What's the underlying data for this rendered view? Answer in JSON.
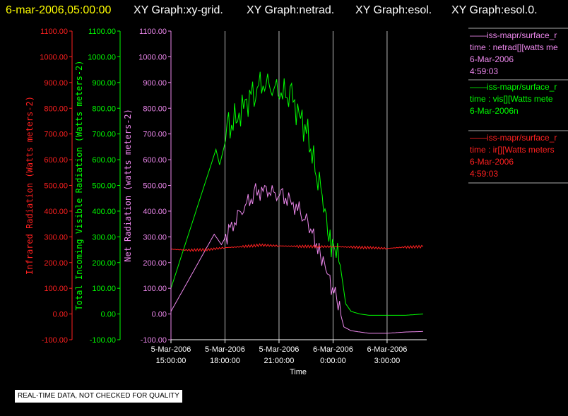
{
  "header": {
    "datetime": "6-mar-2006,05:00:00",
    "graph_titles": [
      "XY Graph:xy-grid.",
      "XY Graph:netrad.",
      "XY Graph:esol.",
      "XY Graph:esol.0."
    ]
  },
  "colors": {
    "red": "#ff2020",
    "green": "#00ff00",
    "violet": "#ee88ee",
    "white": "#ffffff",
    "background": "#000000"
  },
  "chart_data": {
    "type": "line",
    "xlabel": "Time",
    "x_ticks": [
      {
        "value": 15,
        "line1": "5-Mar-2006",
        "line2": "15:00:00"
      },
      {
        "value": 18,
        "line1": "5-Mar-2006",
        "line2": "18:00:00"
      },
      {
        "value": 21,
        "line1": "5-Mar-2006",
        "line2": "21:00:00"
      },
      {
        "value": 24,
        "line1": "6-Mar-2006",
        "line2": "0:00:00"
      },
      {
        "value": 27,
        "line1": "6-Mar-2006",
        "line2": "3:00:00"
      }
    ],
    "xlim": [
      15,
      29.2
    ],
    "ylim": [
      -100,
      1100
    ],
    "y_axes": [
      {
        "label": "Infrared Radiation (Watts meters-2)",
        "color": "red",
        "ticks": [
          "1100.00",
          "1000.00",
          "900.00",
          "800.00",
          "700.00",
          "600.00",
          "500.00",
          "400.00",
          "300.00",
          "200.00",
          "100.00",
          "0.00",
          "-100.00"
        ]
      },
      {
        "label": "Total Incoming Visible Radiation (Watts meters-2)",
        "color": "green",
        "ticks": [
          "1100.00",
          "1000.00",
          "900.00",
          "800.00",
          "700.00",
          "600.00",
          "500.00",
          "400.00",
          "300.00",
          "200.00",
          "100.00",
          "0.00",
          "-100.00"
        ]
      },
      {
        "label": "Net Radiation (watts meters-2)",
        "color": "violet",
        "ticks": [
          "1100.00",
          "1000.00",
          "900.00",
          "800.00",
          "700.00",
          "600.00",
          "500.00",
          "400.00",
          "300.00",
          "200.00",
          "100.00",
          "0.00",
          "-100.00"
        ]
      }
    ],
    "series": [
      {
        "color": "green",
        "points": [
          [
            15,
            100
          ],
          [
            17.5,
            640
          ],
          [
            17.7,
            580
          ],
          [
            18.2,
            720
          ],
          [
            18.7,
            770
          ],
          [
            19.2,
            820
          ],
          [
            19.7,
            880
          ],
          [
            20.2,
            900
          ],
          [
            20.7,
            880
          ],
          [
            21.2,
            860
          ],
          [
            21.7,
            840
          ],
          [
            22.2,
            760
          ],
          [
            22.6,
            700
          ],
          [
            23.0,
            560
          ],
          [
            23.4,
            470
          ],
          [
            23.7,
            330
          ],
          [
            23.9,
            280
          ],
          [
            24.1,
            240
          ],
          [
            24.4,
            190
          ],
          [
            24.7,
            40
          ],
          [
            25.0,
            10
          ],
          [
            25.5,
            0
          ],
          [
            26.0,
            -5
          ],
          [
            27.0,
            -5
          ],
          [
            28.0,
            -5
          ],
          [
            29.0,
            0
          ]
        ]
      },
      {
        "color": "violet",
        "points": [
          [
            15,
            10
          ],
          [
            17.4,
            310
          ],
          [
            17.8,
            270
          ],
          [
            18.2,
            320
          ],
          [
            18.7,
            380
          ],
          [
            19.2,
            430
          ],
          [
            19.7,
            470
          ],
          [
            20.2,
            490
          ],
          [
            20.7,
            470
          ],
          [
            21.2,
            460
          ],
          [
            21.7,
            440
          ],
          [
            22.2,
            390
          ],
          [
            22.6,
            360
          ],
          [
            23.0,
            290
          ],
          [
            23.3,
            230
          ],
          [
            23.6,
            190
          ],
          [
            23.9,
            110
          ],
          [
            24.2,
            60
          ],
          [
            24.6,
            -50
          ],
          [
            25.0,
            -65
          ],
          [
            26.0,
            -75
          ],
          [
            27.0,
            -75
          ],
          [
            28.0,
            -70
          ],
          [
            29.0,
            -68
          ]
        ]
      },
      {
        "color": "red",
        "points": [
          [
            15,
            252
          ],
          [
            16,
            248
          ],
          [
            17,
            250
          ],
          [
            18,
            258
          ],
          [
            19,
            262
          ],
          [
            20,
            268
          ],
          [
            21,
            265
          ],
          [
            22,
            263
          ],
          [
            23,
            262
          ],
          [
            24,
            262
          ],
          [
            25,
            260
          ],
          [
            26,
            258
          ],
          [
            27,
            255
          ],
          [
            28,
            260
          ],
          [
            29,
            262
          ]
        ]
      }
    ]
  },
  "legend": [
    {
      "color": "violet",
      "line1": "——iss-mapr/surface_r",
      "line2": "time : netrad[][watts me",
      "line3": "6-Mar-2006",
      "line4": "4:59:03"
    },
    {
      "color": "green",
      "line1": "——iss-mapr/surface_r",
      "line2": "time : vis[][Watts mete",
      "line3": "6-Mar-2006n",
      "line4": ""
    },
    {
      "color": "red",
      "line1": "——iss-mapr/surface_r",
      "line2": "time : ir[][Watts meters",
      "line3": "6-Mar-2006",
      "line4": "4:59:03"
    }
  ],
  "quality_note": "REAL-TIME DATA, NOT CHECKED FOR QUALITY"
}
